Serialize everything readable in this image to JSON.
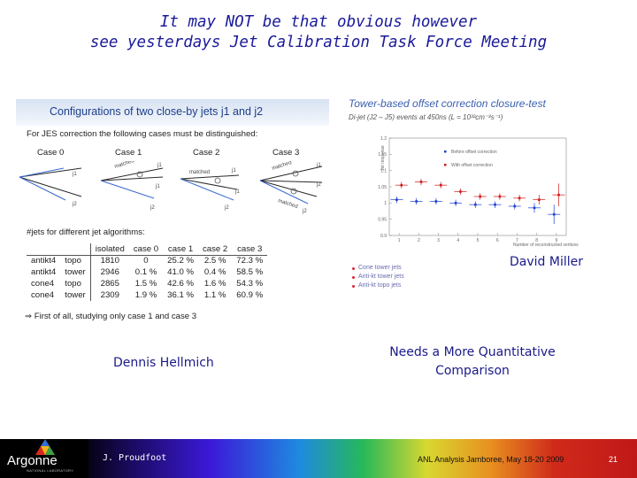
{
  "slide": {
    "title_line1": "It may NOT be that obvious however",
    "title_line2": "see yesterdays Jet Calibration Task Force Meeting"
  },
  "left_panel": {
    "header": "Configurations of two close-by jets j1 and j2",
    "intro": "For JES correction the following cases must be distinguished:",
    "cases": [
      "Case 0",
      "Case 1",
      "Case 2",
      "Case 3"
    ],
    "jet_labels": {
      "j1": "j1",
      "j2": "j2",
      "matched": "matched"
    },
    "table_caption": "#jets for different jet algorithms:",
    "table": {
      "headers": [
        "isolated",
        "case 0",
        "case 1",
        "case 2",
        "case 3"
      ],
      "rows": [
        [
          "antikt4",
          "topo",
          "1810",
          "0",
          "25.2 %",
          "2.5 %",
          "72.3 %"
        ],
        [
          "antikt4",
          "tower",
          "2946",
          "0.1 %",
          "41.0 %",
          "0.4 %",
          "58.5 %"
        ],
        [
          "cone4",
          "topo",
          "2865",
          "1.5 %",
          "42.6 %",
          "1.6 %",
          "54.3 %"
        ],
        [
          "cone4",
          "tower",
          "2309",
          "1.9 %",
          "36.1 %",
          "1.1 %",
          "60.9 %"
        ]
      ]
    },
    "conclusion": "⇒  First of all, studying only case 1 and case 3"
  },
  "right_panel": {
    "title": "Tower-based offset correction closure-test",
    "subtitle": "Di-jet (J2 – J5) events at 450ns (L = 10³²cm⁻²s⁻¹)",
    "legend": [
      "Before offset correction",
      "With offset correction"
    ],
    "y_ticks": [
      "1.2",
      "1.15",
      "1.1",
      "1.05",
      "1",
      "0.95",
      "0.9"
    ],
    "x_ticks": [
      "1",
      "2",
      "3",
      "4",
      "5",
      "6",
      "7",
      "8",
      "9"
    ],
    "ylabel": "Jet response",
    "xlabel": "Number of reconstructed vertices",
    "colors": {
      "before": "#1e3fd0",
      "after": "#d01818"
    },
    "legend_bottom": [
      "Cone tower jets",
      "Anti-kt tower jets",
      "Anti-kt topo jets"
    ]
  },
  "chart_data": {
    "type": "scatter",
    "title": "Tower-based offset correction closure-test",
    "xlabel": "Number of reconstructed vertices",
    "ylabel": "Jet response",
    "xlim": [
      0.5,
      9.5
    ],
    "ylim": [
      0.9,
      1.2
    ],
    "series": [
      {
        "name": "Before offset correction",
        "x": [
          1,
          2,
          3,
          4,
          5,
          6,
          7,
          8,
          9
        ],
        "y": [
          1.01,
          1.005,
          1.005,
          1.0,
          0.995,
          0.995,
          0.99,
          0.985,
          0.965
        ],
        "err": [
          0.01,
          0.01,
          0.01,
          0.01,
          0.01,
          0.01,
          0.01,
          0.015,
          0.03
        ]
      },
      {
        "name": "With offset correction",
        "x": [
          1,
          2,
          3,
          4,
          5,
          6,
          7,
          8,
          9
        ],
        "y": [
          1.055,
          1.065,
          1.055,
          1.035,
          1.02,
          1.02,
          1.015,
          1.01,
          1.025
        ],
        "err": [
          0.01,
          0.01,
          0.01,
          0.01,
          0.01,
          0.01,
          0.01,
          0.015,
          0.035
        ]
      }
    ]
  },
  "credits": {
    "left": "Dennis Hellmich",
    "right": "David Miller",
    "needs": "Needs a More Quantitative Comparison"
  },
  "footer": {
    "logo": "Argonne",
    "logo_sub": "NATIONAL LABORATORY",
    "presenter": "J. Proudfoot",
    "event": "ANL Analysis Jamboree, May 18-20 2009",
    "page": "21"
  }
}
